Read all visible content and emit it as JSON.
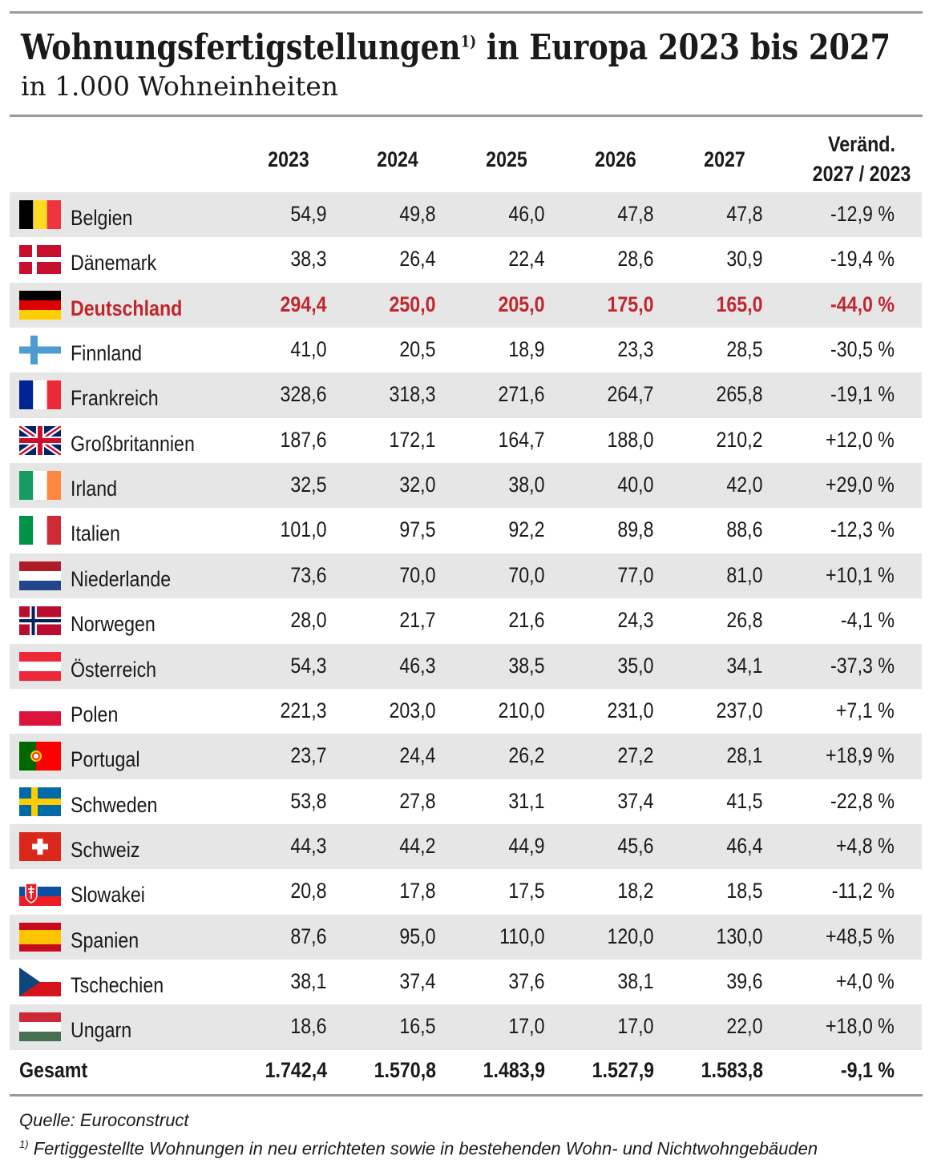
{
  "header": {
    "title": "Wohnungsfertigstellungen",
    "title_note": "1)",
    "title_rest": " in Europa 2023 bis 2027",
    "subtitle": "in 1.000 Wohneinheiten"
  },
  "table": {
    "columns": [
      "2023",
      "2024",
      "2025",
      "2026",
      "2027"
    ],
    "change_header": [
      "Veränd.",
      "2027 / 2023"
    ],
    "rows": [
      [
        "Belgien",
        "54,9",
        "49,8",
        "46,0",
        "47,8",
        "47,8",
        "-12,9 %"
      ],
      [
        "Dänemark",
        "38,3",
        "26,4",
        "22,4",
        "28,6",
        "30,9",
        "-19,4 %"
      ],
      [
        "Deutschland",
        "294,4",
        "250,0",
        "205,0",
        "175,0",
        "165,0",
        "-44,0 %"
      ],
      [
        "Finnland",
        "41,0",
        "20,5",
        "18,9",
        "23,3",
        "28,5",
        "-30,5 %"
      ],
      [
        "Frankreich",
        "328,6",
        "318,3",
        "271,6",
        "264,7",
        "265,8",
        "-19,1 %"
      ],
      [
        "Großbritannien",
        "187,6",
        "172,1",
        "164,7",
        "188,0",
        "210,2",
        "+12,0 %"
      ],
      [
        "Irland",
        "32,5",
        "32,0",
        "38,0",
        "40,0",
        "42,0",
        "+29,0 %"
      ],
      [
        "Italien",
        "101,0",
        "97,5",
        "92,2",
        "89,8",
        "88,6",
        "-12,3 %"
      ],
      [
        "Niederlande",
        "73,6",
        "70,0",
        "70,0",
        "77,0",
        "81,0",
        "+10,1 %"
      ],
      [
        "Norwegen",
        "28,0",
        "21,7",
        "21,6",
        "24,3",
        "26,8",
        "-4,1 %"
      ],
      [
        "Österreich",
        "54,3",
        "46,3",
        "38,5",
        "35,0",
        "34,1",
        "-37,3 %"
      ],
      [
        "Polen",
        "221,3",
        "203,0",
        "210,0",
        "231,0",
        "237,0",
        "+7,1 %"
      ],
      [
        "Portugal",
        "23,7",
        "24,4",
        "26,2",
        "27,2",
        "28,1",
        "+18,9 %"
      ],
      [
        "Schweden",
        "53,8",
        "27,8",
        "31,1",
        "37,4",
        "41,5",
        "-22,8 %"
      ],
      [
        "Schweiz",
        "44,3",
        "44,2",
        "44,9",
        "45,6",
        "46,4",
        "+4,8 %"
      ],
      [
        "Slowakei",
        "20,8",
        "17,8",
        "17,5",
        "18,2",
        "18,5",
        "-11,2 %"
      ],
      [
        "Spanien",
        "87,6",
        "95,0",
        "110,0",
        "120,0",
        "130,0",
        "+48,5 %"
      ],
      [
        "Tschechien",
        "38,1",
        "37,4",
        "37,6",
        "38,1",
        "39,6",
        "+4,0 %"
      ],
      [
        "Ungarn",
        "18,6",
        "16,5",
        "17,0",
        "17,0",
        "22,0",
        "+18,0 %"
      ]
    ],
    "total": [
      "Gesamt",
      "1.742,4",
      "1.570,8",
      "1.483,9",
      "1.527,9",
      "1.583,8",
      "-9,1 %"
    ]
  },
  "footer": {
    "source": "Quelle: Euroconstruct",
    "note_mark": "1)",
    "note": "Fertiggestellte Wohnungen in neu errichteten sowie in bestehenden Wohn- und Nichtwohngebäuden"
  }
}
